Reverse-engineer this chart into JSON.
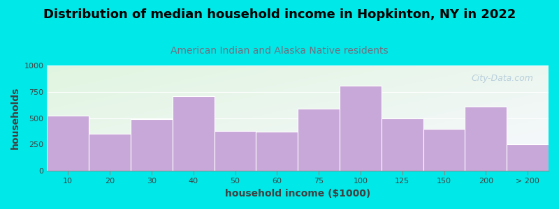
{
  "title": "Distribution of median household income in Hopkinton, NY in 2022",
  "subtitle": "American Indian and Alaska Native residents",
  "xlabel": "household income ($1000)",
  "ylabel": "households",
  "categories": [
    "10",
    "20",
    "30",
    "40",
    "50",
    "60",
    "75",
    "100",
    "125",
    "150",
    "200",
    "> 200"
  ],
  "values": [
    525,
    350,
    490,
    710,
    375,
    370,
    590,
    810,
    500,
    400,
    610,
    250
  ],
  "bar_color": "#c8a8d8",
  "bar_edge_color": "#ffffff",
  "background_color": "#00e8e8",
  "plot_bg_topleft": "#e0f5e0",
  "plot_bg_bottomright": "#f8f8ff",
  "ylim": [
    0,
    1000
  ],
  "yticks": [
    0,
    250,
    500,
    750,
    1000
  ],
  "title_fontsize": 13,
  "subtitle_fontsize": 10,
  "subtitle_color": "#707080",
  "watermark": "City-Data.com",
  "watermark_color": "#b0c8d8",
  "title_color": "#000000",
  "axis_label_color": "#404040",
  "tick_label_fontsize": 8,
  "axis_label_fontsize": 10
}
